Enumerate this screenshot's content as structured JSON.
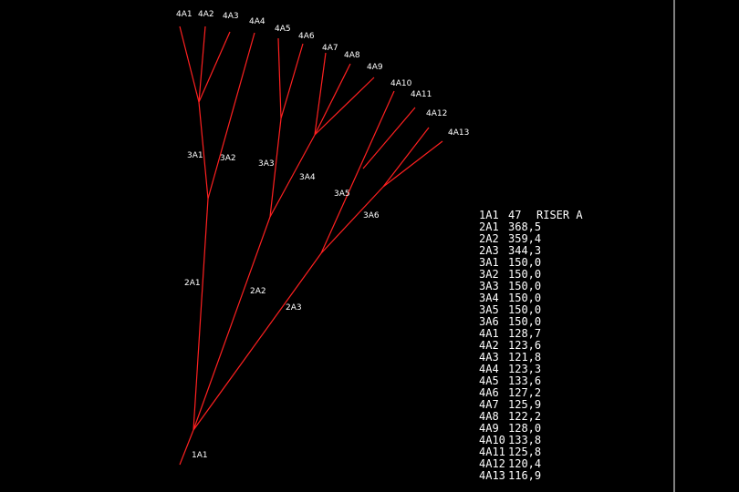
{
  "diagram": {
    "node_labels": [
      "4A1",
      "4A2",
      "4A3",
      "4A4",
      "4A5",
      "4A6",
      "4A7",
      "4A8",
      "4A9",
      "4A10",
      "4A11",
      "4A12",
      "4A13",
      "3A1",
      "3A2",
      "3A3",
      "3A4",
      "3A5",
      "3A6",
      "2A1",
      "2A2",
      "2A3",
      "1A1"
    ],
    "table": {
      "rows": [
        [
          "1A1",
          "47",
          "RISER A"
        ],
        [
          "2A1",
          "368,5"
        ],
        [
          "2A2",
          "359,4"
        ],
        [
          "2A3",
          "344,3"
        ],
        [
          "3A1",
          "150,0"
        ],
        [
          "3A2",
          "150,0"
        ],
        [
          "3A3",
          "150,0"
        ],
        [
          "3A4",
          "150,0"
        ],
        [
          "3A5",
          "150,0"
        ],
        [
          "3A6",
          "150,0"
        ],
        [
          "4A1",
          "128,7"
        ],
        [
          "4A2",
          "123,6"
        ],
        [
          "4A3",
          "121,8"
        ],
        [
          "4A4",
          "123,3"
        ],
        [
          "4A5",
          "133,6"
        ],
        [
          "4A6",
          "127,2"
        ],
        [
          "4A7",
          "125,9"
        ],
        [
          "4A8",
          "122,2"
        ],
        [
          "4A9",
          "128,0"
        ],
        [
          "4A10",
          "133,8"
        ],
        [
          "4A11",
          "125,8"
        ],
        [
          "4A12",
          "120,4"
        ],
        [
          "4A13",
          "116,9"
        ]
      ]
    }
  }
}
